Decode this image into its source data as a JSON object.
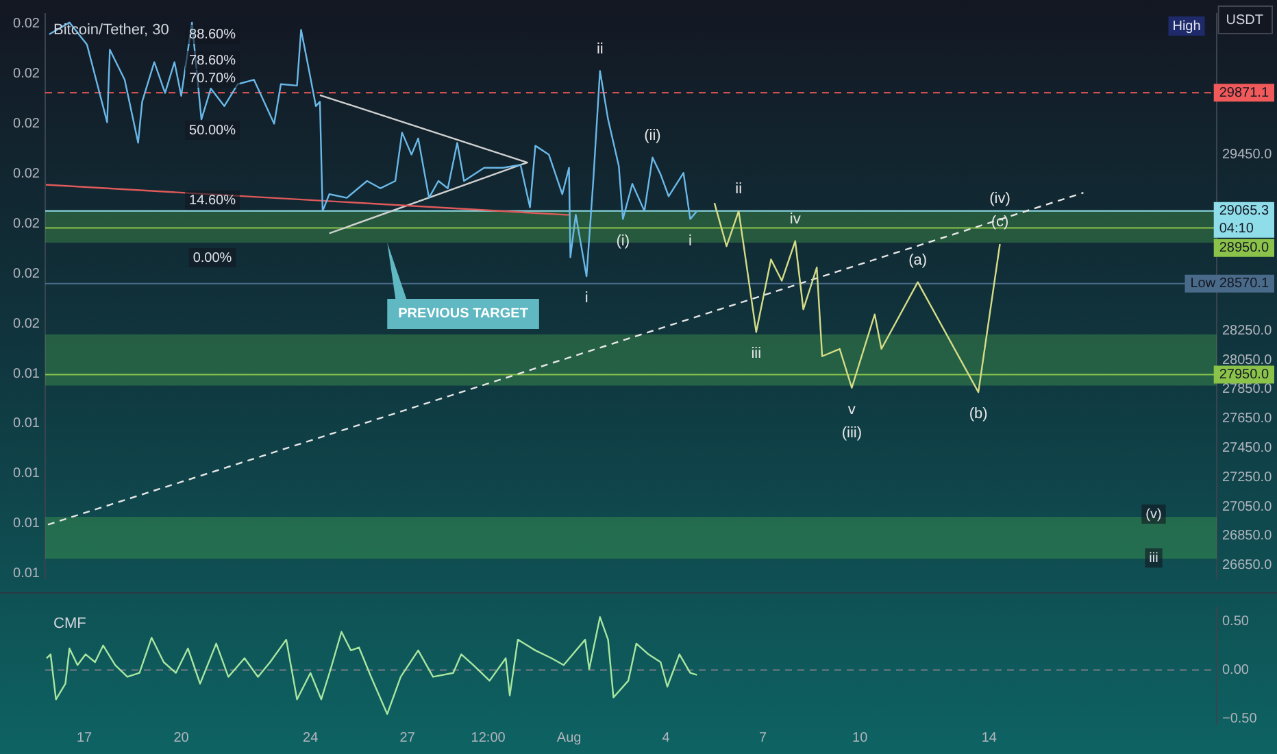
{
  "chart_data": [
    {
      "type": "line",
      "title": "Bitcoin/Tether, 30",
      "ylabel": "USDT",
      "marker": "none",
      "legend": false,
      "grid": false,
      "tick_labels": "y",
      "xlim": [
        "--07-15T19:00",
        "--08-21T01:00"
      ],
      "ylim": [
        26560,
        30410
      ],
      "yticks": [
        {
          "value": 29450,
          "label": "29450.0"
        },
        {
          "value": 28250,
          "label": "28250.0"
        },
        {
          "value": 28050,
          "label": "28050.0"
        },
        {
          "value": 27850,
          "label": "27850.0"
        },
        {
          "value": 27650,
          "label": "27650.0"
        },
        {
          "value": 27450,
          "label": "27450.0"
        },
        {
          "value": 27250,
          "label": "27250.0"
        },
        {
          "value": 27050,
          "label": "27050.0"
        },
        {
          "value": 26850,
          "label": "26850.0"
        },
        {
          "value": 26650,
          "label": "26650.0"
        }
      ],
      "y2lim": [
        0.0101,
        0.0214
      ],
      "y2ticks": [
        {
          "value": 0.0212,
          "label": "0.02"
        },
        {
          "value": 0.0202,
          "label": "0.02"
        },
        {
          "value": 0.0192,
          "label": "0.02"
        },
        {
          "value": 0.0182,
          "label": "0.02"
        },
        {
          "value": 0.0172,
          "label": "0.02"
        },
        {
          "value": 0.0162,
          "label": "0.02"
        },
        {
          "value": 0.0152,
          "label": "0.02"
        },
        {
          "value": 0.0142,
          "label": "0.01"
        },
        {
          "value": 0.0132,
          "label": "0.01"
        },
        {
          "value": 0.0122,
          "label": "0.01"
        },
        {
          "value": 0.0112,
          "label": "0.01"
        },
        {
          "value": 0.0102,
          "label": "0.01"
        }
      ],
      "series": [
        {
          "type": "line",
          "color": "#6ab8e8",
          "x": [
            "--07-15T22:00",
            "--07-16T13:00",
            "--07-17T02:00",
            "--07-17T17:00",
            "--07-17T19:00",
            "--07-18T06:00",
            "--07-18T16:00",
            "--07-18T19:00",
            "--07-19T04:00",
            "--07-19T12:00",
            "--07-19T19:00",
            "--07-20T00:00",
            "--07-20T08:00",
            "--07-20T15:00",
            "--07-20T22:00",
            "--07-21T08:00",
            "--07-21T18:00",
            "--07-22T06:00",
            "--07-22T21:00",
            "--07-23T02:00",
            "--07-23T14:00",
            "--07-23T17:00",
            "--07-23T23:00",
            "--07-24T04:00",
            "--07-24T07:00",
            "--07-24T09:00",
            "--07-24T14:00",
            "--07-25T03:00",
            "--07-25T18:00",
            "--07-26T04:00",
            "--07-26T15:00",
            "--07-26T20:00",
            "--07-27T03:00",
            "--07-27T08:00",
            "--07-27T16:00",
            "--07-27T23:00",
            "--07-28T06:00",
            "--07-28T13:00",
            "--07-28T18:00",
            "--07-29T09:00",
            "--07-29T23:00",
            "--07-30T12:00",
            "--07-30T19:00",
            "--07-30T23:00",
            "--07-31T09:00",
            "--07-31T19:00",
            "--08-01T00:00",
            "--08-01T01:00",
            "--08-01T05:00",
            "--08-01T13:00",
            "--08-01T18:00",
            "--08-01T23:00",
            "--08-02T05:00",
            "--08-02T13:00",
            "--08-02T16:00",
            "--08-02T23:00",
            "--08-03T08:00",
            "--08-03T14:00",
            "--08-03T20:00",
            "--08-04T02:00",
            "--08-04T13:00",
            "--08-04T18:00",
            "--08-04T23:00"
          ],
          "values": [
            30270,
            30350,
            30200,
            29670,
            30165,
            29960,
            29530,
            29810,
            30080,
            29870,
            30080,
            29850,
            30350,
            29690,
            29900,
            29780,
            29930,
            29960,
            29660,
            29930,
            29920,
            30300,
            30020,
            29780,
            29810,
            29065,
            29180,
            29155,
            29270,
            29220,
            29270,
            29600,
            29450,
            29560,
            29155,
            29270,
            29220,
            29530,
            29270,
            29360,
            29360,
            29380,
            29090,
            29510,
            29450,
            29180,
            29360,
            28750,
            29040,
            28620,
            29270,
            30020,
            29690,
            29370,
            29010,
            29250,
            29065,
            29430,
            29315,
            29165,
            29325,
            29010,
            29065
          ]
        },
        {
          "type": "line",
          "color": "#d4dc86",
          "x": [
            "--08-05T12:00",
            "--08-05T21:00",
            "--08-06T06:00",
            "--08-06T19:00",
            "--08-07T06:00",
            "--08-07T14:00",
            "--08-08T00:00",
            "--08-08T06:00",
            "--08-08T16:00",
            "--08-08T20:00",
            "--08-09T09:00",
            "--08-09T18:00",
            "--08-10T11:00",
            "--08-10T16:00",
            "--08-11T19:00",
            "--08-13T16:00",
            "--08-14T08:00"
          ],
          "values": [
            29120,
            28825,
            29065,
            28240,
            28735,
            28590,
            28860,
            28395,
            28680,
            28075,
            28125,
            27860,
            28360,
            28125,
            28580,
            27830,
            28840
          ]
        },
        {
          "type": "line",
          "color": "#e6e6e6",
          "line_style": "dashed",
          "x": [
            "--07-15T21:00",
            "--08-16T22:00"
          ],
          "values": [
            26927,
            29190
          ]
        },
        {
          "type": "line",
          "color": "#e05a5a",
          "x": [
            "--07-15T19:30",
            "--08-01T00:00"
          ],
          "values": [
            29244,
            29038
          ]
        },
        {
          "type": "line",
          "color": "#d0d0d0",
          "x": [
            "--07-24T07:00",
            "--07-30T17:00",
            "--07-24T14:00"
          ],
          "values": [
            29855,
            29396,
            28913
          ]
        }
      ],
      "ref_lines": [
        {
          "axis": "y",
          "value": 29871.1,
          "label": "29871.1",
          "color": "#f05a5a",
          "line_style": "dashed"
        },
        {
          "axis": "y",
          "value": 29065.3,
          "label": "29065.3\n04:10",
          "color": "#8fdde8"
        },
        {
          "axis": "y",
          "value": 28950.0,
          "label": "28950.0",
          "color": "#8bc34a"
        },
        {
          "axis": "y",
          "value": 28570.1,
          "label": "Low 28570.1",
          "color": "#4a6a8a"
        },
        {
          "axis": "y",
          "value": 27950.0,
          "label": "27950.0",
          "color": "#8bc34a"
        }
      ],
      "bands": [
        {
          "axis": "y",
          "from": 28850,
          "to": 29065,
          "color": "#4caf50"
        },
        {
          "axis": "y",
          "from": 27875,
          "to": 28225,
          "color": "#4caf50"
        },
        {
          "axis": "y",
          "from": 26695,
          "to": 26980,
          "color": "#4caf50"
        }
      ],
      "annotations": [
        "High",
        "88.60%",
        "78.60%",
        "70.70%",
        "50.00%",
        "14.60%",
        "0.00%",
        "(v)",
        "iii",
        {
          "text": "PREVIOUS TARGET",
          "x": "--07-26T09:00",
          "y": 28850
        },
        {
          "text": "ii",
          "x": "--08-01T23:00",
          "y": 30020
        },
        {
          "text": "(ii)",
          "x": "--08-03T14:00",
          "y": 29430
        },
        {
          "text": "(i)",
          "x": "--08-02T16:00",
          "y": 29010
        },
        {
          "text": "i",
          "x": "--08-01T13:00",
          "y": 28620
        },
        {
          "text": "i",
          "x": "--08-04T18:00",
          "y": 29010
        },
        {
          "text": "ii",
          "x": "--08-06T06:00",
          "y": 29065
        },
        {
          "text": "iv",
          "x": "--08-08T00:00",
          "y": 28860
        },
        {
          "text": "iii",
          "x": "--08-06T19:00",
          "y": 28240
        },
        {
          "text": "v",
          "x": "--08-09T18:00",
          "y": 27860
        },
        {
          "text": "(iii)",
          "x": "--08-09T18:00",
          "y": 27860
        },
        {
          "text": "(a)",
          "x": "--08-11T19:00",
          "y": 28580
        },
        {
          "text": "(b)",
          "x": "--08-13T16:00",
          "y": 27830
        },
        {
          "text": "(c)",
          "x": "--08-14T08:00",
          "y": 28840
        },
        {
          "text": "(iv)",
          "x": "--08-14T08:00",
          "y": 28840
        }
      ]
    },
    {
      "type": "line",
      "title": "CMF",
      "marker": "none",
      "legend": false,
      "grid": false,
      "xlim": [
        "--07-15T19:00",
        "--08-21T01:00"
      ],
      "ylim": [
        -0.55,
        0.64
      ],
      "xticks": [
        {
          "value": "--07-17",
          "label": "17"
        },
        {
          "value": "--07-20",
          "label": "20"
        },
        {
          "value": "--07-24",
          "label": "24"
        },
        {
          "value": "--07-27",
          "label": "27"
        },
        {
          "value": "--07-29T12:00",
          "label": "12:00"
        },
        {
          "value": "--08-01",
          "label": "Aug"
        },
        {
          "value": "--08-04",
          "label": "4"
        },
        {
          "value": "--08-07",
          "label": "7"
        },
        {
          "value": "--08-10",
          "label": "10"
        },
        {
          "value": "--08-14",
          "label": "14"
        }
      ],
      "yticks": [
        {
          "value": 0.5,
          "label": "0.50"
        },
        {
          "value": 0,
          "label": "0.00"
        },
        {
          "value": -0.5,
          "label": "−0.50"
        }
      ],
      "series": [
        {
          "color": "#a8e6a0",
          "x": [
            "--07-15T20:00",
            "--07-15T23:00",
            "--07-16T03:00",
            "--07-16T10:00",
            "--07-16T13:00",
            "--07-16T19:00",
            "--07-17T01:00",
            "--07-17T08:00",
            "--07-17T14:00",
            "--07-17T23:00",
            "--07-18T08:00",
            "--07-18T17:00",
            "--07-19T02:00",
            "--07-19T11:00",
            "--07-19T20:00",
            "--07-20T05:00",
            "--07-20T14:00",
            "--07-21T02:00",
            "--07-21T11:00",
            "--07-21T23:00",
            "--07-22T09:00",
            "--07-22T18:00",
            "--07-23T06:00",
            "--07-23T14:00",
            "--07-24T00:00",
            "--07-24T08:00",
            "--07-24T15:00",
            "--07-24T23:00",
            "--07-25T06:00",
            "--07-25T12:00",
            "--07-25T21:00",
            "--07-26T09:00",
            "--07-26T19:00",
            "--07-27T08:00",
            "--07-27T19:00",
            "--07-28T10:00",
            "--07-28T16:00",
            "--07-29T01:00",
            "--07-29T13:00",
            "--07-30T01:00",
            "--07-30T04:00",
            "--07-30T10:00",
            "--07-30T23:00",
            "--07-31T11:00",
            "--07-31T20:00",
            "--08-01T12:00",
            "--08-01T15:00",
            "--08-01T23:00",
            "--08-02T05:00",
            "--08-02T09:00",
            "--08-02T20:00",
            "--08-03T02:00",
            "--08-03T11:00",
            "--08-03T20:00",
            "--08-04T01:00",
            "--08-04T10:00",
            "--08-04T18:00",
            "--08-04T23:00"
          ],
          "values": [
            0.12,
            0.16,
            -0.3,
            -0.14,
            0.22,
            0.05,
            0.16,
            0.08,
            0.25,
            0.05,
            -0.07,
            -0.03,
            0.33,
            0.08,
            -0.03,
            0.22,
            -0.14,
            0.27,
            -0.07,
            0.12,
            -0.07,
            0.08,
            0.31,
            -0.3,
            -0.03,
            -0.3,
            0.01,
            0.39,
            0.2,
            0.23,
            -0.07,
            -0.45,
            -0.07,
            0.2,
            -0.07,
            -0.03,
            0.16,
            0.05,
            -0.11,
            0.12,
            -0.26,
            0.31,
            0.2,
            0.12,
            0.05,
            0.31,
            0.01,
            0.54,
            0.31,
            -0.28,
            -0.11,
            0.27,
            0.16,
            0.08,
            -0.17,
            0.16,
            -0.03,
            -0.05
          ]
        }
      ],
      "ref_lines": [
        {
          "axis": "y",
          "value": 0,
          "color": "#787b86",
          "line_style": "dashed"
        }
      ]
    }
  ]
}
